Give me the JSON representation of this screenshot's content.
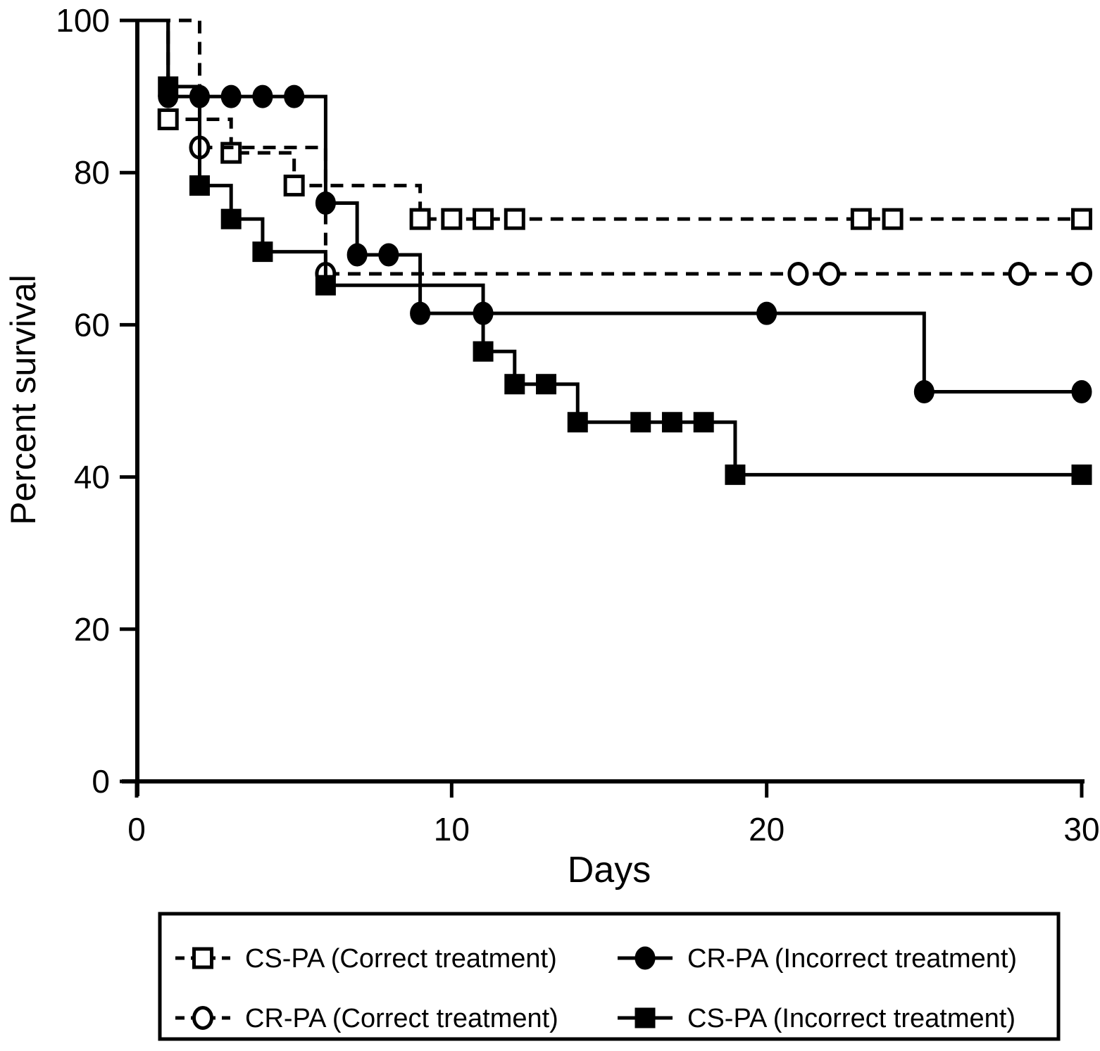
{
  "figure": {
    "background": "#ffffff",
    "ink_color": "#000000"
  },
  "chart_data": {
    "type": "line",
    "subtype": "kaplan-meier-step",
    "title": "",
    "xlabel": "Days",
    "ylabel": "Percent survival",
    "xlim": [
      0,
      30
    ],
    "ylim": [
      0,
      100
    ],
    "x_ticks": [
      0,
      10,
      20,
      30
    ],
    "y_ticks": [
      0,
      20,
      40,
      60,
      80,
      100
    ],
    "grid": false,
    "legend_position": "bottom",
    "color": "#000000",
    "series": [
      {
        "name": "CS-PA (Correct treatment)",
        "line": "dashed",
        "marker": "open-square",
        "steps": [
          [
            0,
            100
          ],
          [
            1,
            87.0
          ],
          [
            3,
            82.6
          ],
          [
            5,
            78.3
          ],
          [
            9,
            73.9
          ],
          [
            30,
            73.9
          ]
        ],
        "markers": [
          [
            1,
            87.0
          ],
          [
            3,
            82.6
          ],
          [
            5,
            78.3
          ],
          [
            9,
            73.9
          ],
          [
            10,
            73.9
          ],
          [
            11,
            73.9
          ],
          [
            12,
            73.9
          ],
          [
            23,
            73.9
          ],
          [
            24,
            73.9
          ],
          [
            30,
            73.9
          ]
        ]
      },
      {
        "name": "CR-PA (Incorrect treatment)",
        "line": "solid",
        "marker": "filled-circle",
        "steps": [
          [
            0,
            100
          ],
          [
            1,
            90.0
          ],
          [
            6,
            76.0
          ],
          [
            7,
            69.2
          ],
          [
            9,
            61.5
          ],
          [
            25,
            51.2
          ],
          [
            30,
            51.2
          ]
        ],
        "markers": [
          [
            1,
            90.0
          ],
          [
            2,
            90.0
          ],
          [
            3,
            90.0
          ],
          [
            4,
            90.0
          ],
          [
            5,
            90.0
          ],
          [
            6,
            76.0
          ],
          [
            7,
            69.2
          ],
          [
            8,
            69.2
          ],
          [
            9,
            61.5
          ],
          [
            11,
            61.5
          ],
          [
            20,
            61.5
          ],
          [
            25,
            51.2
          ],
          [
            30,
            51.2
          ]
        ]
      },
      {
        "name": "CR-PA (Correct treatment)",
        "line": "dashed",
        "marker": "open-circle",
        "steps": [
          [
            0,
            100
          ],
          [
            2,
            83.3
          ],
          [
            6,
            66.7
          ],
          [
            30,
            66.7
          ]
        ],
        "markers": [
          [
            2,
            83.3
          ],
          [
            6,
            66.7
          ],
          [
            21,
            66.7
          ],
          [
            22,
            66.7
          ],
          [
            28,
            66.7
          ],
          [
            30,
            66.7
          ]
        ]
      },
      {
        "name": "CS-PA (Incorrect treatment)",
        "line": "solid",
        "marker": "filled-square",
        "steps": [
          [
            0,
            100
          ],
          [
            1,
            91.3
          ],
          [
            2,
            78.3
          ],
          [
            3,
            73.9
          ],
          [
            4,
            69.6
          ],
          [
            6,
            65.2
          ],
          [
            11,
            56.5
          ],
          [
            12,
            52.2
          ],
          [
            14,
            47.2
          ],
          [
            19,
            40.3
          ],
          [
            30,
            40.3
          ]
        ],
        "markers": [
          [
            1,
            91.3
          ],
          [
            2,
            78.3
          ],
          [
            3,
            73.9
          ],
          [
            4,
            69.6
          ],
          [
            6,
            65.2
          ],
          [
            11,
            56.5
          ],
          [
            12,
            52.2
          ],
          [
            13,
            52.2
          ],
          [
            14,
            47.2
          ],
          [
            16,
            47.2
          ],
          [
            17,
            47.2
          ],
          [
            18,
            47.2
          ],
          [
            19,
            40.3
          ],
          [
            30,
            40.3
          ]
        ]
      }
    ]
  }
}
